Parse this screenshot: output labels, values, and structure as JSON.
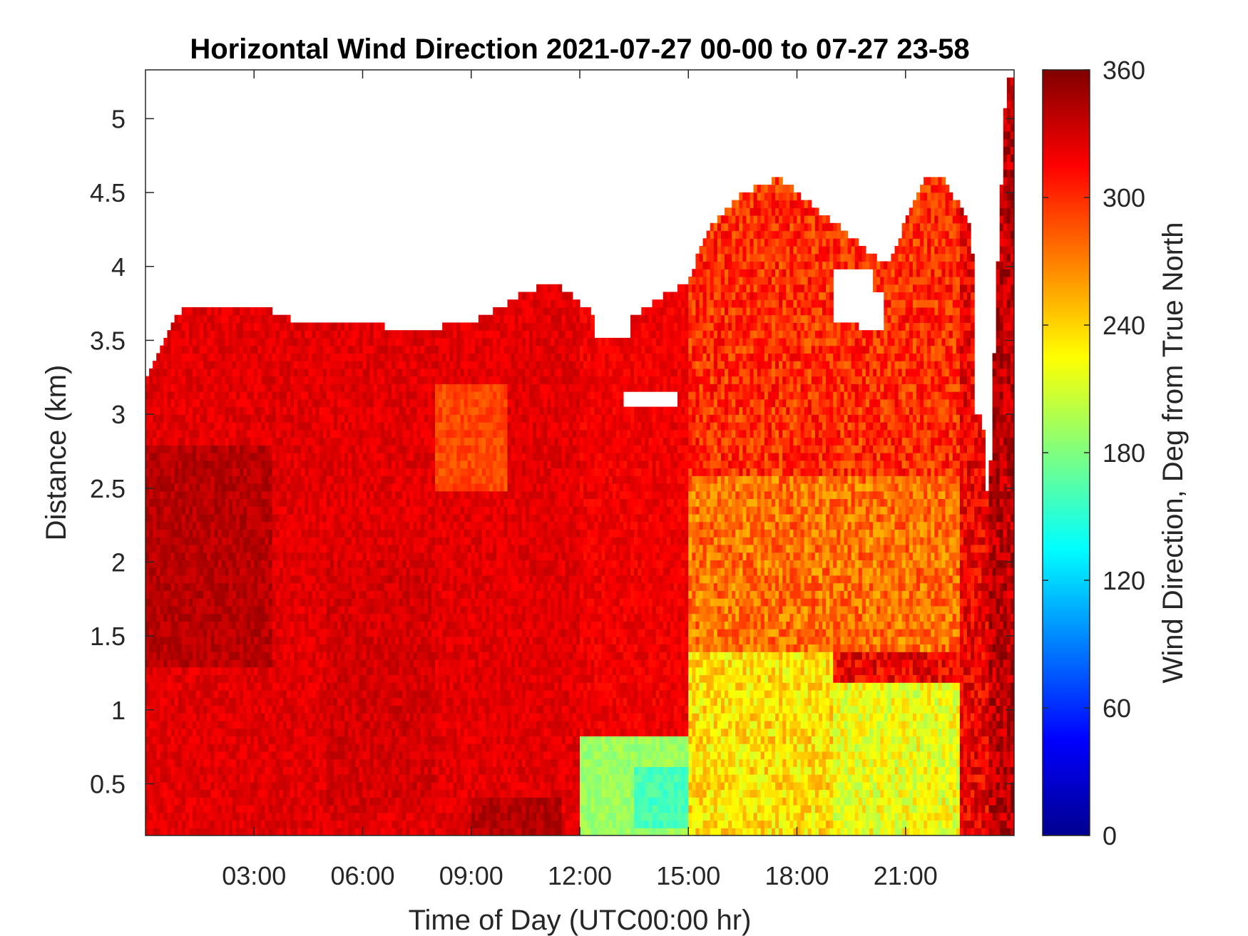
{
  "chart_data": {
    "type": "heatmap",
    "title": "Horizontal Wind Direction 2021-07-27 00-00 to 07-27 23-58",
    "xlabel": "Time of Day (UTC00:00 hr)",
    "ylabel": "Distance (km)",
    "colorbar_label": "Wind Direction, Deg from True North",
    "xlim_hours": [
      0,
      24
    ],
    "ylim_km": [
      0.15,
      5.33
    ],
    "clim": [
      0,
      360
    ],
    "colormap": "jet",
    "x_ticks": [
      {
        "value": 3,
        "label": "03:00"
      },
      {
        "value": 6,
        "label": "06:00"
      },
      {
        "value": 9,
        "label": "09:00"
      },
      {
        "value": 12,
        "label": "12:00"
      },
      {
        "value": 15,
        "label": "15:00"
      },
      {
        "value": 18,
        "label": "18:00"
      },
      {
        "value": 21,
        "label": "21:00"
      }
    ],
    "y_ticks": [
      {
        "value": 0.5,
        "label": "0.5"
      },
      {
        "value": 1,
        "label": "1"
      },
      {
        "value": 1.5,
        "label": "1.5"
      },
      {
        "value": 2,
        "label": "2"
      },
      {
        "value": 2.5,
        "label": "2.5"
      },
      {
        "value": 3,
        "label": "3"
      },
      {
        "value": 3.5,
        "label": "3.5"
      },
      {
        "value": 4,
        "label": "4"
      },
      {
        "value": 4.5,
        "label": "4.5"
      },
      {
        "value": 5,
        "label": "5"
      }
    ],
    "colorbar_ticks": [
      {
        "value": 0,
        "label": "0"
      },
      {
        "value": 60,
        "label": "60"
      },
      {
        "value": 120,
        "label": "120"
      },
      {
        "value": 180,
        "label": "180"
      },
      {
        "value": 240,
        "label": "240"
      },
      {
        "value": 300,
        "label": "300"
      },
      {
        "value": 360,
        "label": "360"
      }
    ],
    "data_top_km": {
      "hours": [
        0,
        0.2,
        0.7,
        1,
        2,
        3,
        3.5,
        4.5,
        5.5,
        6.5,
        7.3,
        8.3,
        9.3,
        10.3,
        11.3,
        12.3,
        13,
        14,
        15,
        15.5,
        16.5,
        17.5,
        18.5,
        19.5,
        20.5,
        21.5,
        22,
        22.8,
        23.3,
        23.5,
        23.8,
        24
      ],
      "top": [
        3.2,
        3.35,
        3.6,
        3.7,
        3.7,
        3.75,
        3.7,
        3.6,
        3.6,
        3.6,
        3.55,
        3.6,
        3.65,
        3.8,
        3.9,
        3.7,
        3.6,
        3.75,
        3.9,
        4.25,
        4.5,
        4.6,
        4.4,
        4.2,
        4.0,
        4.6,
        4.6,
        4.3,
        2.3,
        3.8,
        5.3,
        5.3
      ]
    },
    "data_gaps": [
      {
        "hours": [
          12.4,
          13.4
        ],
        "km": [
          3.5,
          3.85
        ]
      },
      {
        "hours": [
          13.2,
          14.7
        ],
        "km": [
          3.05,
          3.15
        ]
      },
      {
        "hours": [
          9.8,
          10.3
        ],
        "km": [
          3.8,
          4.05
        ]
      },
      {
        "hours": [
          19.0,
          20.1
        ],
        "km": [
          3.6,
          4.0
        ]
      },
      {
        "hours": [
          19.7,
          20.4
        ],
        "km": [
          3.55,
          3.85
        ]
      },
      {
        "hours": [
          22.9,
          23.2
        ],
        "km": [
          3.0,
          4.3
        ]
      }
    ],
    "regions_deg": [
      {
        "hours": [
          0,
          12
        ],
        "km": [
          0.15,
          5.33
        ],
        "deg": 325
      },
      {
        "hours": [
          0,
          3.5
        ],
        "km": [
          1.3,
          2.8
        ],
        "deg": 340
      },
      {
        "hours": [
          5,
          8
        ],
        "km": [
          0.3,
          2.0
        ],
        "deg": 330
      },
      {
        "hours": [
          9,
          11.5
        ],
        "km": [
          0.15,
          0.4
        ],
        "deg": 340
      },
      {
        "hours": [
          8,
          10
        ],
        "km": [
          2.5,
          3.2
        ],
        "deg": 290
      },
      {
        "hours": [
          12,
          15
        ],
        "km": [
          0.15,
          0.8
        ],
        "deg": 190
      },
      {
        "hours": [
          13.5,
          15
        ],
        "km": [
          0.2,
          0.6
        ],
        "deg": 160
      },
      {
        "hours": [
          15,
          19
        ],
        "km": [
          0.15,
          1.4
        ],
        "deg": 235
      },
      {
        "hours": [
          19,
          22.5
        ],
        "km": [
          0.15,
          1.2
        ],
        "deg": 220
      },
      {
        "hours": [
          15,
          22.5
        ],
        "km": [
          1.4,
          2.6
        ],
        "deg": 275
      },
      {
        "hours": [
          15,
          22.5
        ],
        "km": [
          2.6,
          4.6
        ],
        "deg": 300
      },
      {
        "hours": [
          23.3,
          24
        ],
        "km": [
          0.15,
          5.3
        ],
        "deg": 340
      }
    ]
  }
}
